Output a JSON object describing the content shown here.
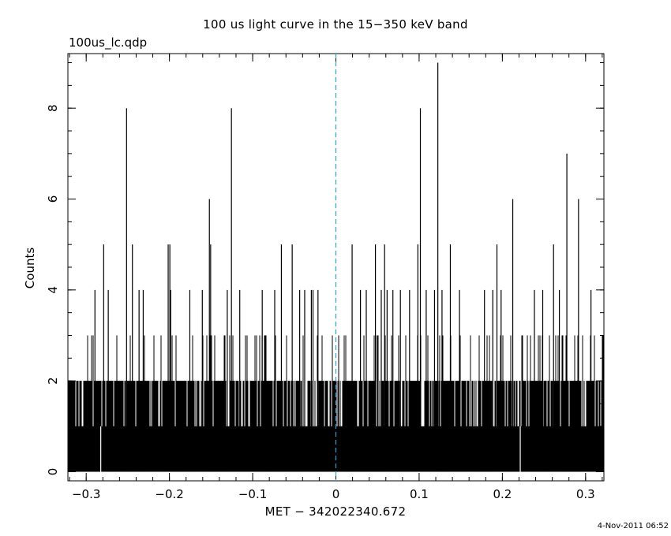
{
  "chart_data": {
    "type": "bar",
    "title": "100 us light curve in the 15−350 keV band",
    "filename": "100us_lc.qdp",
    "xlabel": "MET − 342022340.672",
    "ylabel": "Counts",
    "timestamp": "4-Nov-2011 06:52",
    "xlim": [
      -0.322,
      0.322
    ],
    "ylim": [
      -0.2,
      9.2
    ],
    "bin_width": 0.0001,
    "xticks": [
      -0.3,
      -0.2,
      -0.1,
      0,
      0.1,
      0.2,
      0.3
    ],
    "xtick_labels": [
      "−0.3",
      "−0.2",
      "−0.1",
      "0",
      "0.1",
      "0.2",
      "0.3"
    ],
    "yticks": [
      0,
      2,
      4,
      6,
      8
    ],
    "ytick_labels": [
      "0",
      "2",
      "4",
      "6",
      "8"
    ],
    "trigger_line": {
      "x": 0,
      "color": "#2e9fd0",
      "style": "dashed"
    },
    "peaks": [
      {
        "x": -0.2515,
        "y": 8
      },
      {
        "x": -0.1255,
        "y": 8
      },
      {
        "x": 0.1015,
        "y": 8
      },
      {
        "x": 0.1225,
        "y": 9
      },
      {
        "x": -0.152,
        "y": 6
      },
      {
        "x": 0.2125,
        "y": 6
      },
      {
        "x": 0.2775,
        "y": 7
      },
      {
        "x": 0.2915,
        "y": 6
      },
      {
        "x": -0.279,
        "y": 5
      },
      {
        "x": -0.2445,
        "y": 5
      },
      {
        "x": -0.2015,
        "y": 5
      },
      {
        "x": -0.1995,
        "y": 5
      },
      {
        "x": -0.1505,
        "y": 5
      },
      {
        "x": -0.0655,
        "y": 5
      },
      {
        "x": -0.0525,
        "y": 5
      },
      {
        "x": 0.0195,
        "y": 5
      },
      {
        "x": 0.0475,
        "y": 5
      },
      {
        "x": 0.0585,
        "y": 5
      },
      {
        "x": 0.0985,
        "y": 5
      },
      {
        "x": 0.1375,
        "y": 5
      },
      {
        "x": 0.1935,
        "y": 5
      },
      {
        "x": 0.2615,
        "y": 5
      },
      {
        "x": -0.2895,
        "y": 4
      },
      {
        "x": -0.2735,
        "y": 4
      },
      {
        "x": -0.2365,
        "y": 4
      },
      {
        "x": -0.2315,
        "y": 4
      },
      {
        "x": -0.1985,
        "y": 4
      },
      {
        "x": -0.1755,
        "y": 4
      },
      {
        "x": -0.1605,
        "y": 4
      },
      {
        "x": -0.1305,
        "y": 4
      },
      {
        "x": -0.1155,
        "y": 4
      },
      {
        "x": -0.0885,
        "y": 4
      },
      {
        "x": -0.0735,
        "y": 4
      },
      {
        "x": -0.0435,
        "y": 4
      },
      {
        "x": -0.0375,
        "y": 4
      },
      {
        "x": -0.0275,
        "y": 4
      },
      {
        "x": -0.0215,
        "y": 4
      },
      {
        "x": -0.0295,
        "y": 4
      },
      {
        "x": 0.0295,
        "y": 4
      },
      {
        "x": 0.0365,
        "y": 4
      },
      {
        "x": 0.0545,
        "y": 4
      },
      {
        "x": 0.0615,
        "y": 4
      },
      {
        "x": 0.0685,
        "y": 4
      },
      {
        "x": 0.0775,
        "y": 4
      },
      {
        "x": 0.0885,
        "y": 4
      },
      {
        "x": 0.1085,
        "y": 4
      },
      {
        "x": 0.1185,
        "y": 4
      },
      {
        "x": 0.1275,
        "y": 4
      },
      {
        "x": 0.1485,
        "y": 4
      },
      {
        "x": 0.1785,
        "y": 4
      },
      {
        "x": 0.1885,
        "y": 4
      },
      {
        "x": 0.1985,
        "y": 4
      },
      {
        "x": 0.2385,
        "y": 4
      },
      {
        "x": 0.2485,
        "y": 4
      },
      {
        "x": 0.2685,
        "y": 4
      },
      {
        "x": 0.3065,
        "y": 4
      }
    ],
    "zero_gaps": [
      -0.2825,
      0.2215
    ]
  }
}
